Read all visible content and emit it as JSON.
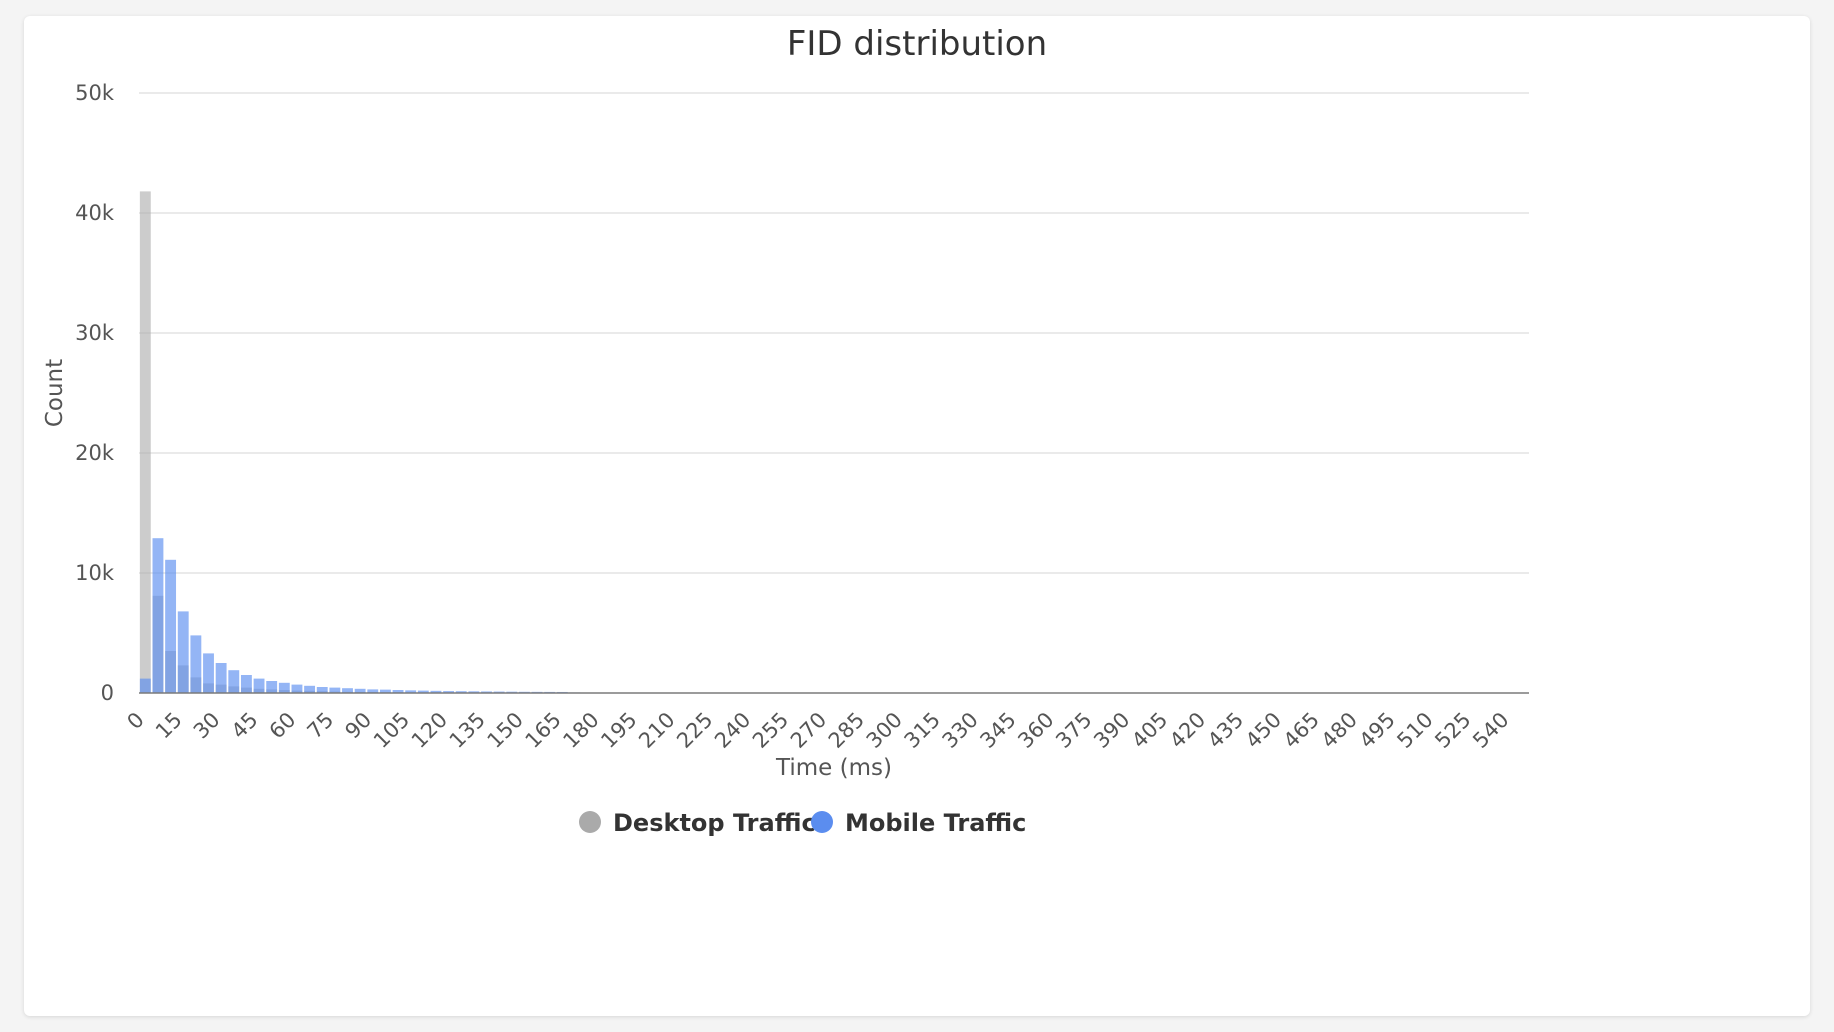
{
  "chart_data": {
    "type": "bar",
    "title": "FID distribution",
    "xlabel": "Time (ms)",
    "ylabel": "Count",
    "ylim": [
      0,
      50000
    ],
    "yticks": [
      0,
      10000,
      20000,
      30000,
      40000,
      50000
    ],
    "ytick_labels": [
      "0",
      "10k",
      "20k",
      "30k",
      "40k",
      "50k"
    ],
    "grid": true,
    "legend_position": "bottom-center",
    "categories": [
      0,
      5,
      10,
      15,
      20,
      25,
      30,
      35,
      40,
      45,
      50,
      55,
      60,
      65,
      70,
      75,
      80,
      85,
      90,
      95,
      100,
      105,
      110,
      115,
      120,
      125,
      130,
      135,
      140,
      145,
      150,
      155,
      160,
      165,
      170,
      175,
      180,
      185,
      190,
      195,
      200,
      205,
      210,
      215,
      220,
      225,
      230,
      235,
      240,
      245,
      250,
      255,
      260,
      265,
      270,
      275,
      280,
      285,
      290,
      295,
      300,
      305,
      310,
      315,
      320,
      325,
      330,
      335,
      340,
      345,
      350,
      355,
      360,
      365,
      370,
      375,
      380,
      385,
      390,
      395,
      400,
      405,
      410,
      415,
      420,
      425,
      430,
      435,
      440,
      445,
      450,
      455,
      460,
      465,
      470,
      475,
      480,
      485,
      490,
      495,
      500,
      505,
      510,
      515,
      520,
      525,
      530,
      535,
      540,
      545
    ],
    "xtick_labels": [
      "0",
      "15",
      "30",
      "45",
      "60",
      "75",
      "90",
      "105",
      "120",
      "135",
      "150",
      "165",
      "180",
      "195",
      "210",
      "225",
      "240",
      "255",
      "270",
      "285",
      "300",
      "315",
      "330",
      "345",
      "360",
      "375",
      "390",
      "405",
      "420",
      "435",
      "450",
      "465",
      "480",
      "495",
      "510",
      "525",
      "540"
    ],
    "series": [
      {
        "name": "Desktop Traffic",
        "color": "#aaaaaa",
        "values": [
          41800,
          8100,
          3500,
          2300,
          1300,
          800,
          700,
          550,
          450,
          350,
          300,
          250,
          200,
          180,
          150,
          120,
          100,
          90,
          80,
          70,
          60,
          55,
          50,
          45,
          40,
          35,
          30,
          28,
          25,
          22,
          20,
          18,
          15,
          12,
          10,
          8,
          6,
          5,
          4,
          3,
          2,
          2,
          2,
          1,
          1,
          1,
          1,
          1,
          1,
          1,
          1,
          1,
          1,
          1,
          1,
          1,
          1,
          1,
          1,
          1,
          1,
          1,
          1,
          1,
          1,
          1,
          1,
          1,
          1,
          1,
          1,
          1,
          1,
          1,
          1,
          1,
          1,
          1,
          1,
          1,
          1,
          1,
          1,
          1,
          1,
          1,
          1,
          1,
          1,
          1,
          1,
          1,
          1,
          1,
          1,
          1,
          1,
          1,
          1,
          1,
          1,
          1,
          1,
          1,
          1,
          1,
          1,
          1,
          1,
          1
        ]
      },
      {
        "name": "Mobile Traffic",
        "color": "#5b8def",
        "values": [
          1200,
          12900,
          11100,
          6800,
          4800,
          3300,
          2500,
          1900,
          1500,
          1200,
          1000,
          850,
          700,
          600,
          500,
          450,
          400,
          350,
          300,
          280,
          250,
          220,
          200,
          180,
          160,
          150,
          140,
          130,
          120,
          110,
          100,
          95,
          90,
          85,
          50,
          30,
          20,
          15,
          12,
          10,
          8,
          7,
          6,
          5,
          5,
          4,
          4,
          3,
          3,
          3,
          3,
          2,
          2,
          2,
          2,
          2,
          2,
          2,
          2,
          2,
          2,
          2,
          2,
          2,
          2,
          1,
          1,
          1,
          1,
          1,
          1,
          1,
          1,
          1,
          1,
          1,
          1,
          1,
          1,
          1,
          1,
          1,
          1,
          1,
          1,
          1,
          1,
          1,
          1,
          1,
          1,
          1,
          1,
          1,
          1,
          1,
          1,
          1,
          1,
          1,
          1,
          1,
          1,
          1,
          1,
          1,
          1,
          1,
          1,
          1
        ]
      }
    ]
  }
}
